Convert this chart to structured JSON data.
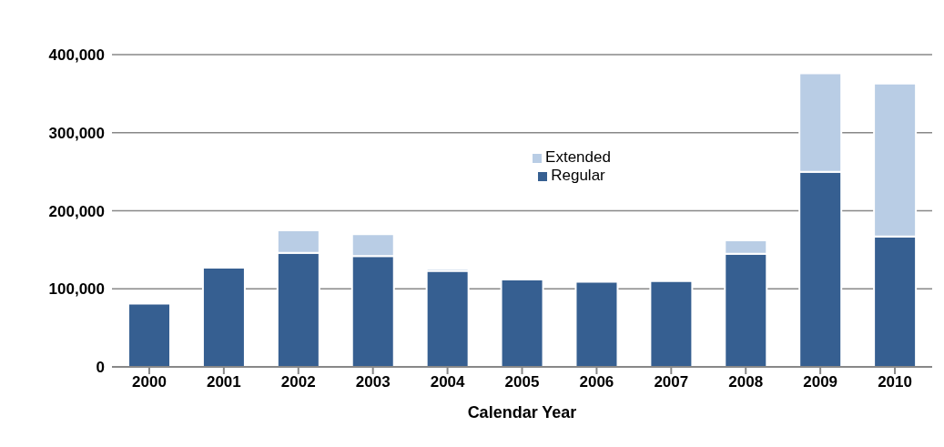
{
  "chart_data": {
    "type": "bar",
    "xlabel": "Calendar Year",
    "categories": [
      "2000",
      "2001",
      "2002",
      "2003",
      "2004",
      "2005",
      "2006",
      "2007",
      "2008",
      "2009",
      "2010"
    ],
    "stacked": true,
    "series": [
      {
        "name": "Regular",
        "color": "#365f91",
        "values": [
          81000,
          127000,
          146000,
          142000,
          123000,
          112000,
          109000,
          110000,
          145000,
          250000,
          167000
        ]
      },
      {
        "name": "Extended",
        "color": "#b9cde5",
        "values": [
          null,
          null,
          29000,
          28000,
          3000,
          null,
          null,
          null,
          17000,
          126000,
          196000
        ]
      }
    ],
    "ylim": [
      0,
      400000
    ],
    "yticks": [
      {
        "value": 0,
        "label": "0"
      },
      {
        "value": 100000,
        "label": "100,000"
      },
      {
        "value": 200000,
        "label": "200,000"
      },
      {
        "value": 300000,
        "label": "300,000"
      },
      {
        "value": 400000,
        "label": "400,000"
      }
    ],
    "grid": "y",
    "legend": "top"
  }
}
